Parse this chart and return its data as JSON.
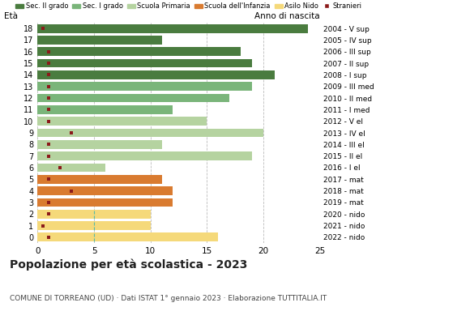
{
  "ages": [
    18,
    17,
    16,
    15,
    14,
    13,
    12,
    11,
    10,
    9,
    8,
    7,
    6,
    5,
    4,
    3,
    2,
    1,
    0
  ],
  "years": [
    "2004 - V sup",
    "2005 - IV sup",
    "2006 - III sup",
    "2007 - II sup",
    "2008 - I sup",
    "2009 - III med",
    "2010 - II med",
    "2011 - I med",
    "2012 - V el",
    "2013 - IV el",
    "2014 - III el",
    "2015 - II el",
    "2016 - I el",
    "2017 - mat",
    "2018 - mat",
    "2019 - mat",
    "2020 - nido",
    "2021 - nido",
    "2022 - nido"
  ],
  "bar_values": [
    24,
    11,
    18,
    19,
    21,
    19,
    17,
    12,
    15,
    20,
    11,
    19,
    6,
    11,
    12,
    12,
    10,
    10,
    16
  ],
  "stranieri_x": [
    0.5,
    0.5,
    1,
    1,
    1,
    1,
    1,
    1,
    1,
    3,
    1,
    1,
    2,
    1,
    3,
    1,
    1,
    0.5,
    1
  ],
  "stranieri_show": [
    true,
    false,
    true,
    true,
    true,
    true,
    true,
    true,
    true,
    true,
    true,
    true,
    true,
    true,
    true,
    true,
    true,
    true,
    true
  ],
  "bar_colors": [
    "#4a7c3f",
    "#4a7c3f",
    "#4a7c3f",
    "#4a7c3f",
    "#4a7c3f",
    "#7ab57a",
    "#7ab57a",
    "#7ab57a",
    "#b5d3a0",
    "#b5d3a0",
    "#b5d3a0",
    "#b5d3a0",
    "#b5d3a0",
    "#d97b30",
    "#d97b30",
    "#d97b30",
    "#f5d97a",
    "#f5d97a",
    "#f5d97a"
  ],
  "legend_colors": {
    "Sec. II grado": "#4a7c3f",
    "Sec. I grado": "#7ab57a",
    "Scuola Primaria": "#b5d3a0",
    "Scuola dell'Infanzia": "#d97b30",
    "Asilo Nido": "#f5d97a",
    "Stranieri": "#8b1a1a"
  },
  "title": "Popolazione per età scolastica - 2023",
  "subtitle": "COMUNE DI TORREANO (UD) · Dati ISTAT 1° gennaio 2023 · Elaborazione TUTTITALIA.IT",
  "xlim": [
    0,
    25
  ],
  "xticks": [
    0,
    5,
    10,
    15,
    20,
    25
  ],
  "background_color": "#ffffff",
  "grid_color": "#bbbbbb"
}
